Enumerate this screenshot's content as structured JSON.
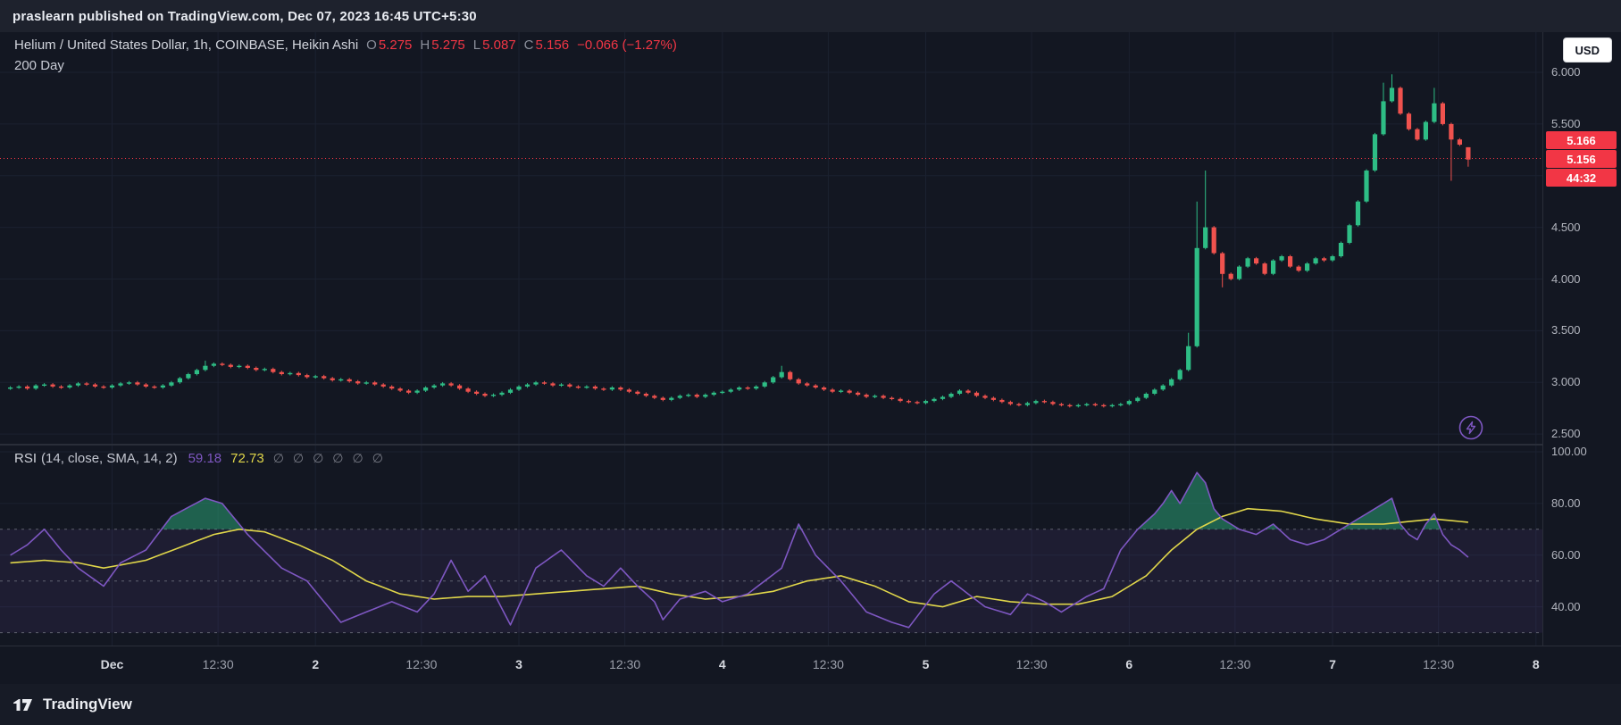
{
  "publish_bar": {
    "text": "praslearn published on TradingView.com, Dec 07, 2023 16:45 UTC+5:30"
  },
  "header": {
    "symbol_title": "Helium / United States Dollar, 1h, COINBASE, Heikin Ashi",
    "ohlc": {
      "o_label": "O",
      "o": "5.275",
      "h_label": "H",
      "h": "5.275",
      "l_label": "L",
      "l": "5.087",
      "c_label": "C",
      "c": "5.156",
      "change": "−0.066 (−1.27%)"
    },
    "subtitle": "200 Day",
    "currency_button": "USD"
  },
  "rsi_legend": {
    "title": "RSI",
    "params": "(14, close, SMA, 14, 2)",
    "rsi_value": "59.18",
    "sma_value": "72.73",
    "empty_values": [
      "∅",
      "∅",
      "∅",
      "∅",
      "∅",
      "∅"
    ]
  },
  "price_axis": {
    "badges": [
      {
        "text": "5.166"
      },
      {
        "text": "5.156"
      },
      {
        "text": "44:32"
      }
    ],
    "last_price": 5.166
  },
  "time_axis": {
    "ticks": [
      {
        "label": "Dec",
        "index": 12,
        "major": true
      },
      {
        "label": "12:30",
        "index": 24.5,
        "major": false
      },
      {
        "label": "2",
        "index": 36,
        "major": true
      },
      {
        "label": "12:30",
        "index": 48.5,
        "major": false
      },
      {
        "label": "3",
        "index": 60,
        "major": true
      },
      {
        "label": "12:30",
        "index": 72.5,
        "major": false
      },
      {
        "label": "4",
        "index": 84,
        "major": true
      },
      {
        "label": "12:30",
        "index": 96.5,
        "major": false
      },
      {
        "label": "5",
        "index": 108,
        "major": true
      },
      {
        "label": "12:30",
        "index": 120.5,
        "major": false
      },
      {
        "label": "6",
        "index": 132,
        "major": true
      },
      {
        "label": "12:30",
        "index": 144.5,
        "major": false
      },
      {
        "label": "7",
        "index": 156,
        "major": true
      },
      {
        "label": "12:30",
        "index": 168.5,
        "major": false
      },
      {
        "label": "8",
        "index": 180,
        "major": true
      }
    ]
  },
  "footer": {
    "brand": "TradingView"
  },
  "colors": {
    "up": "#2ebd85",
    "down": "#f0524e",
    "accent_red": "#f23645",
    "rsi_line": "#7e57c2",
    "sma_line": "#e0d64a",
    "grid": "#1b2130",
    "band_fill": "rgba(126,87,194,0.10)",
    "band_line": "#787b86",
    "overbought_fill": "rgba(46,189,133,0.45)",
    "axis_text": "#b2b5be"
  },
  "chart_data": [
    {
      "type": "candlestick",
      "title": "Helium / United States Dollar, 1h, COINBASE, Heikin Ashi",
      "interval": "1h",
      "x_start": "2023-11-30 12:00",
      "x_end": "2023-12-07 16:00",
      "ylim": [
        2.4,
        6.1
      ],
      "y_ticks": [
        2.5,
        3.0,
        3.5,
        4.0,
        4.5,
        5.0,
        5.5,
        6.0
      ],
      "last_price": 5.166,
      "last_bar": {
        "o": 5.275,
        "h": 5.275,
        "l": 5.087,
        "c": 5.156
      },
      "closes": [
        2.95,
        2.96,
        2.94,
        2.97,
        2.98,
        2.96,
        2.95,
        2.97,
        2.99,
        2.98,
        2.96,
        2.95,
        2.97,
        2.99,
        3.0,
        2.98,
        2.96,
        2.95,
        2.97,
        3.0,
        3.04,
        3.08,
        3.12,
        3.16,
        3.18,
        3.17,
        3.15,
        3.16,
        3.14,
        3.12,
        3.13,
        3.1,
        3.08,
        3.09,
        3.07,
        3.05,
        3.06,
        3.04,
        3.02,
        3.03,
        3.01,
        2.99,
        3.0,
        2.98,
        2.96,
        2.94,
        2.92,
        2.9,
        2.92,
        2.95,
        2.97,
        2.99,
        2.97,
        2.94,
        2.91,
        2.89,
        2.87,
        2.88,
        2.9,
        2.93,
        2.96,
        2.98,
        3.0,
        2.99,
        2.97,
        2.98,
        2.96,
        2.95,
        2.96,
        2.94,
        2.93,
        2.95,
        2.93,
        2.91,
        2.89,
        2.87,
        2.85,
        2.83,
        2.85,
        2.87,
        2.88,
        2.86,
        2.88,
        2.9,
        2.91,
        2.93,
        2.95,
        2.94,
        2.96,
        3.0,
        3.05,
        3.1,
        3.03,
        2.99,
        2.97,
        2.95,
        2.93,
        2.91,
        2.92,
        2.9,
        2.88,
        2.86,
        2.87,
        2.85,
        2.84,
        2.82,
        2.81,
        2.8,
        2.82,
        2.84,
        2.86,
        2.89,
        2.92,
        2.9,
        2.87,
        2.85,
        2.83,
        2.81,
        2.79,
        2.78,
        2.8,
        2.82,
        2.81,
        2.79,
        2.78,
        2.77,
        2.78,
        2.79,
        2.78,
        2.77,
        2.78,
        2.79,
        2.82,
        2.85,
        2.89,
        2.93,
        2.97,
        3.03,
        3.12,
        3.35,
        4.3,
        4.5,
        4.25,
        4.05,
        4.0,
        4.12,
        4.2,
        4.15,
        4.05,
        4.18,
        4.22,
        4.12,
        4.08,
        4.15,
        4.2,
        4.18,
        4.22,
        4.35,
        4.52,
        4.75,
        5.05,
        5.4,
        5.72,
        5.85,
        5.6,
        5.45,
        5.35,
        5.52,
        5.7,
        5.5,
        5.35,
        5.3,
        5.156
      ],
      "wick_overrides": {
        "23": {
          "h": 3.21
        },
        "91": {
          "h": 3.16
        },
        "139": {
          "h": 3.48
        },
        "140": {
          "h": 4.75
        },
        "141": {
          "h": 5.05
        },
        "143": {
          "l": 3.92
        },
        "162": {
          "h": 5.9
        },
        "163": {
          "h": 5.98
        },
        "168": {
          "h": 5.85
        },
        "170": {
          "l": 4.95
        },
        "172": {
          "o": 5.275,
          "h": 5.275,
          "l": 5.087,
          "c": 5.156
        }
      }
    },
    {
      "type": "line",
      "title": "RSI (14, close, SMA, 14, 2)",
      "ylim": [
        25,
        103
      ],
      "y_ticks": [
        40,
        60,
        80,
        100
      ],
      "bands": {
        "upper": 70,
        "middle": 50,
        "lower": 30
      },
      "series": [
        {
          "name": "RSI",
          "current": 59.18,
          "keypoints": [
            [
              0,
              60
            ],
            [
              2,
              64
            ],
            [
              4,
              70
            ],
            [
              6,
              62
            ],
            [
              8,
              55
            ],
            [
              11,
              48
            ],
            [
              13,
              57
            ],
            [
              16,
              62
            ],
            [
              19,
              75
            ],
            [
              23,
              82
            ],
            [
              25,
              80
            ],
            [
              28,
              68
            ],
            [
              32,
              55
            ],
            [
              35,
              50
            ],
            [
              39,
              34
            ],
            [
              42,
              38
            ],
            [
              45,
              42
            ],
            [
              48,
              38
            ],
            [
              50,
              45
            ],
            [
              52,
              58
            ],
            [
              54,
              46
            ],
            [
              56,
              52
            ],
            [
              59,
              33
            ],
            [
              62,
              55
            ],
            [
              65,
              62
            ],
            [
              68,
              52
            ],
            [
              70,
              48
            ],
            [
              72,
              55
            ],
            [
              74,
              48
            ],
            [
              76,
              42
            ],
            [
              77,
              35
            ],
            [
              79,
              43
            ],
            [
              82,
              46
            ],
            [
              84,
              42
            ],
            [
              87,
              45
            ],
            [
              89,
              50
            ],
            [
              91,
              55
            ],
            [
              93,
              72
            ],
            [
              95,
              60
            ],
            [
              98,
              50
            ],
            [
              101,
              38
            ],
            [
              104,
              34
            ],
            [
              106,
              32
            ],
            [
              109,
              45
            ],
            [
              111,
              50
            ],
            [
              113,
              45
            ],
            [
              115,
              40
            ],
            [
              118,
              37
            ],
            [
              120,
              45
            ],
            [
              122,
              42
            ],
            [
              124,
              38
            ],
            [
              127,
              44
            ],
            [
              129,
              47
            ],
            [
              131,
              62
            ],
            [
              133,
              70
            ],
            [
              135,
              76
            ],
            [
              136,
              80
            ],
            [
              137,
              85
            ],
            [
              138,
              80
            ],
            [
              140,
              92
            ],
            [
              141,
              88
            ],
            [
              142,
              78
            ],
            [
              143,
              74
            ],
            [
              145,
              70
            ],
            [
              147,
              68
            ],
            [
              149,
              72
            ],
            [
              151,
              66
            ],
            [
              153,
              64
            ],
            [
              155,
              66
            ],
            [
              157,
              70
            ],
            [
              159,
              74
            ],
            [
              161,
              78
            ],
            [
              163,
              82
            ],
            [
              164,
              72
            ],
            [
              165,
              68
            ],
            [
              166,
              66
            ],
            [
              167,
              72
            ],
            [
              168,
              76
            ],
            [
              169,
              68
            ],
            [
              170,
              64
            ],
            [
              171,
              62
            ],
            [
              172,
              59.18
            ]
          ]
        },
        {
          "name": "SMA",
          "current": 72.73,
          "keypoints": [
            [
              0,
              57
            ],
            [
              4,
              58
            ],
            [
              8,
              57
            ],
            [
              11,
              55
            ],
            [
              16,
              58
            ],
            [
              20,
              63
            ],
            [
              24,
              68
            ],
            [
              27,
              70
            ],
            [
              30,
              69
            ],
            [
              34,
              64
            ],
            [
              38,
              58
            ],
            [
              42,
              50
            ],
            [
              46,
              45
            ],
            [
              50,
              43
            ],
            [
              54,
              44
            ],
            [
              58,
              44
            ],
            [
              62,
              45
            ],
            [
              66,
              46
            ],
            [
              70,
              47
            ],
            [
              74,
              48
            ],
            [
              78,
              45
            ],
            [
              82,
              43
            ],
            [
              86,
              44
            ],
            [
              90,
              46
            ],
            [
              94,
              50
            ],
            [
              98,
              52
            ],
            [
              102,
              48
            ],
            [
              106,
              42
            ],
            [
              110,
              40
            ],
            [
              114,
              44
            ],
            [
              118,
              42
            ],
            [
              122,
              41
            ],
            [
              126,
              41
            ],
            [
              130,
              44
            ],
            [
              134,
              52
            ],
            [
              137,
              62
            ],
            [
              140,
              70
            ],
            [
              143,
              75
            ],
            [
              146,
              78
            ],
            [
              150,
              77
            ],
            [
              154,
              74
            ],
            [
              158,
              72
            ],
            [
              162,
              72
            ],
            [
              165,
              73
            ],
            [
              168,
              74
            ],
            [
              172,
              72.73
            ]
          ]
        }
      ]
    }
  ]
}
